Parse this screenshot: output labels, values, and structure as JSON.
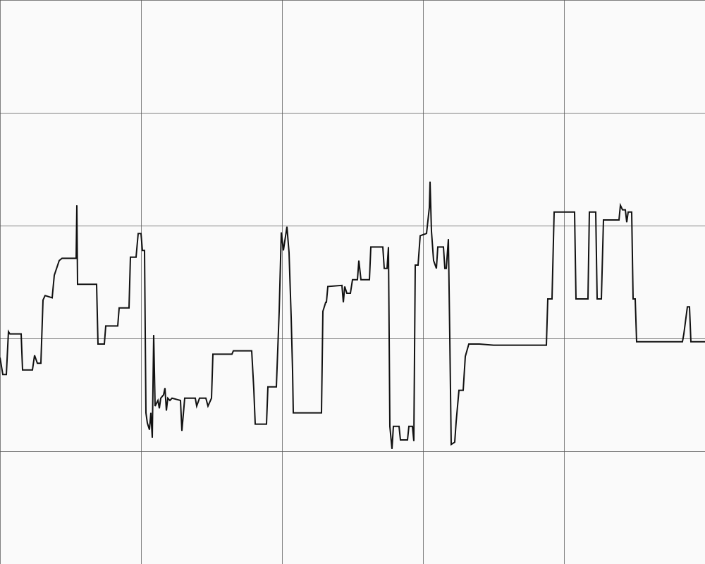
{
  "chart_data": {
    "type": "line",
    "title": "",
    "xlabel": "",
    "ylabel": "",
    "xlim": [
      0,
      1000
    ],
    "ylim": [
      0,
      5
    ],
    "grid": true,
    "x_ticks": [
      0,
      200,
      400,
      600,
      800,
      1000
    ],
    "y_ticks": [
      0,
      1,
      2,
      3,
      4,
      5
    ],
    "colors": {
      "background": "#fafafa",
      "grid": "#555555",
      "series": "#111111"
    },
    "series": [
      {
        "name": "",
        "step": true,
        "points": [
          [
            0,
            1.83
          ],
          [
            4,
            1.68
          ],
          [
            9,
            1.68
          ],
          [
            12,
            2.06
          ],
          [
            14,
            2.04
          ],
          [
            30,
            2.04
          ],
          [
            32,
            1.72
          ],
          [
            46,
            1.72
          ],
          [
            49,
            1.85
          ],
          [
            53,
            1.78
          ],
          [
            58,
            1.78
          ],
          [
            61,
            2.34
          ],
          [
            64,
            2.38
          ],
          [
            74,
            2.36
          ],
          [
            77,
            2.56
          ],
          [
            84,
            2.69
          ],
          [
            88,
            2.71
          ],
          [
            108,
            2.71
          ],
          [
            109,
            3.18
          ],
          [
            110,
            2.48
          ],
          [
            137,
            2.48
          ],
          [
            139,
            1.95
          ],
          [
            148,
            1.95
          ],
          [
            150,
            2.11
          ],
          [
            167,
            2.11
          ],
          [
            169,
            2.27
          ],
          [
            183,
            2.27
          ],
          [
            185,
            2.72
          ],
          [
            193,
            2.72
          ],
          [
            196,
            2.93
          ],
          [
            200,
            2.93
          ],
          [
            202,
            2.78
          ],
          [
            205,
            2.78
          ],
          [
            207,
            1.34
          ],
          [
            209,
            1.25
          ],
          [
            212,
            1.19
          ],
          [
            214,
            1.34
          ],
          [
            216,
            1.12
          ],
          [
            218,
            2.03
          ],
          [
            220,
            1.4
          ],
          [
            224,
            1.45
          ],
          [
            226,
            1.38
          ],
          [
            228,
            1.47
          ],
          [
            232,
            1.5
          ],
          [
            234,
            1.56
          ],
          [
            236,
            1.36
          ],
          [
            238,
            1.47
          ],
          [
            241,
            1.45
          ],
          [
            244,
            1.47
          ],
          [
            256,
            1.45
          ],
          [
            258,
            1.18
          ],
          [
            262,
            1.47
          ],
          [
            277,
            1.47
          ],
          [
            279,
            1.4
          ],
          [
            283,
            1.47
          ],
          [
            292,
            1.47
          ],
          [
            295,
            1.4
          ],
          [
            300,
            1.47
          ],
          [
            302,
            1.86
          ],
          [
            329,
            1.86
          ],
          [
            331,
            1.89
          ],
          [
            357,
            1.89
          ],
          [
            360,
            1.55
          ],
          [
            362,
            1.24
          ],
          [
            378,
            1.24
          ],
          [
            380,
            1.57
          ],
          [
            392,
            1.57
          ],
          [
            396,
            2.24
          ],
          [
            399,
            2.94
          ],
          [
            402,
            2.78
          ],
          [
            407,
            2.99
          ],
          [
            410,
            2.76
          ],
          [
            413,
            2.19
          ],
          [
            415,
            1.71
          ],
          [
            416,
            1.34
          ],
          [
            456,
            1.34
          ],
          [
            458,
            2.24
          ],
          [
            462,
            2.32
          ],
          [
            463,
            2.32
          ],
          [
            465,
            2.46
          ],
          [
            485,
            2.47
          ],
          [
            487,
            2.32
          ],
          [
            489,
            2.46
          ],
          [
            492,
            2.4
          ],
          [
            497,
            2.4
          ],
          [
            500,
            2.52
          ],
          [
            507,
            2.52
          ],
          [
            509,
            2.69
          ],
          [
            512,
            2.52
          ],
          [
            524,
            2.52
          ],
          [
            526,
            2.81
          ],
          [
            543,
            2.81
          ],
          [
            545,
            2.62
          ],
          [
            549,
            2.62
          ],
          [
            551,
            2.81
          ],
          [
            553,
            1.22
          ],
          [
            556,
            1.02
          ],
          [
            558,
            1.22
          ],
          [
            566,
            1.22
          ],
          [
            568,
            1.1
          ],
          [
            578,
            1.1
          ],
          [
            580,
            1.22
          ],
          [
            585,
            1.22
          ],
          [
            587,
            1.09
          ],
          [
            589,
            2.65
          ],
          [
            593,
            2.65
          ],
          [
            596,
            2.91
          ],
          [
            605,
            2.93
          ],
          [
            609,
            3.16
          ],
          [
            610,
            3.39
          ],
          [
            612,
            2.95
          ],
          [
            615,
            2.69
          ],
          [
            619,
            2.62
          ],
          [
            621,
            2.81
          ],
          [
            629,
            2.81
          ],
          [
            631,
            2.62
          ],
          [
            633,
            2.62
          ],
          [
            636,
            2.88
          ],
          [
            638,
            2.01
          ],
          [
            640,
            1.06
          ],
          [
            645,
            1.08
          ],
          [
            647,
            1.26
          ],
          [
            651,
            1.54
          ],
          [
            657,
            1.54
          ],
          [
            660,
            1.84
          ],
          [
            665,
            1.95
          ],
          [
            680,
            1.95
          ],
          [
            700,
            1.94
          ],
          [
            740,
            1.94
          ],
          [
            775,
            1.94
          ],
          [
            777,
            2.35
          ],
          [
            783,
            2.35
          ],
          [
            786,
            3.12
          ],
          [
            815,
            3.12
          ],
          [
            817,
            2.35
          ],
          [
            834,
            2.35
          ],
          [
            836,
            3.12
          ],
          [
            845,
            3.12
          ],
          [
            847,
            2.35
          ],
          [
            853,
            2.35
          ],
          [
            856,
            3.05
          ],
          [
            878,
            3.05
          ],
          [
            880,
            3.18
          ],
          [
            883,
            3.14
          ],
          [
            887,
            3.14
          ],
          [
            889,
            3.03
          ],
          [
            891,
            3.12
          ],
          [
            896,
            3.12
          ],
          [
            898,
            2.35
          ],
          [
            901,
            2.35
          ],
          [
            903,
            1.97
          ],
          [
            968,
            1.97
          ],
          [
            970,
            2.04
          ],
          [
            975,
            2.28
          ],
          [
            978,
            2.28
          ],
          [
            980,
            1.97
          ],
          [
            1000,
            1.97
          ]
        ]
      }
    ]
  }
}
